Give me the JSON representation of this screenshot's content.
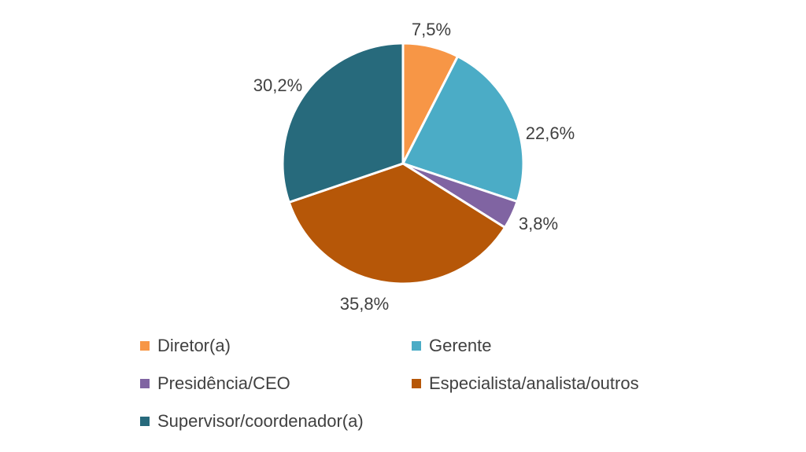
{
  "chart_data": {
    "type": "pie",
    "title": "",
    "start_angle_deg": 0,
    "direction": "clockwise",
    "slices": [
      {
        "name": "Diretor(a)",
        "value": 7.5,
        "label": "7,5%",
        "color": "#F79646"
      },
      {
        "name": "Gerente",
        "value": 22.6,
        "label": "22,6%",
        "color": "#4BACC6"
      },
      {
        "name": "Presidência/CEO",
        "value": 3.8,
        "label": "3,8%",
        "color": "#8064A2"
      },
      {
        "name": "Especialista/analista/outros",
        "value": 35.8,
        "label": "35,8%",
        "color": "#B65708"
      },
      {
        "name": "Supervisor/coordenador(a)",
        "value": 30.2,
        "label": "30,2%",
        "color": "#276A7C"
      }
    ],
    "legend_position": "bottom"
  },
  "legend": {
    "items": [
      {
        "label": "Diretor(a)",
        "color": "#F79646"
      },
      {
        "label": "Gerente",
        "color": "#4BACC6"
      },
      {
        "label": "Presidência/CEO",
        "color": "#8064A2"
      },
      {
        "label": "Especialista/analista/outros",
        "color": "#B65708"
      },
      {
        "label": "Supervisor/coordenador(a)",
        "color": "#276A7C"
      }
    ]
  }
}
